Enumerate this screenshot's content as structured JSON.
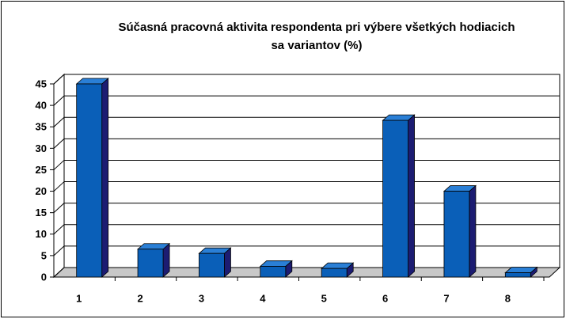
{
  "chart_data": {
    "type": "bar3d",
    "title": "Súčasná pracovná aktivita respondenta pri výbere všetkých hodiacich sa variantov (%)",
    "categories": [
      "1",
      "2",
      "3",
      "4",
      "5",
      "6",
      "7",
      "8"
    ],
    "values": [
      45,
      6.5,
      5.5,
      2.5,
      2,
      36.5,
      20,
      1
    ],
    "color": "#0a5fb8",
    "ylim": [
      0,
      45
    ],
    "yticks": [
      0,
      5,
      10,
      15,
      20,
      25,
      30,
      35,
      40,
      45
    ],
    "grid": true
  }
}
